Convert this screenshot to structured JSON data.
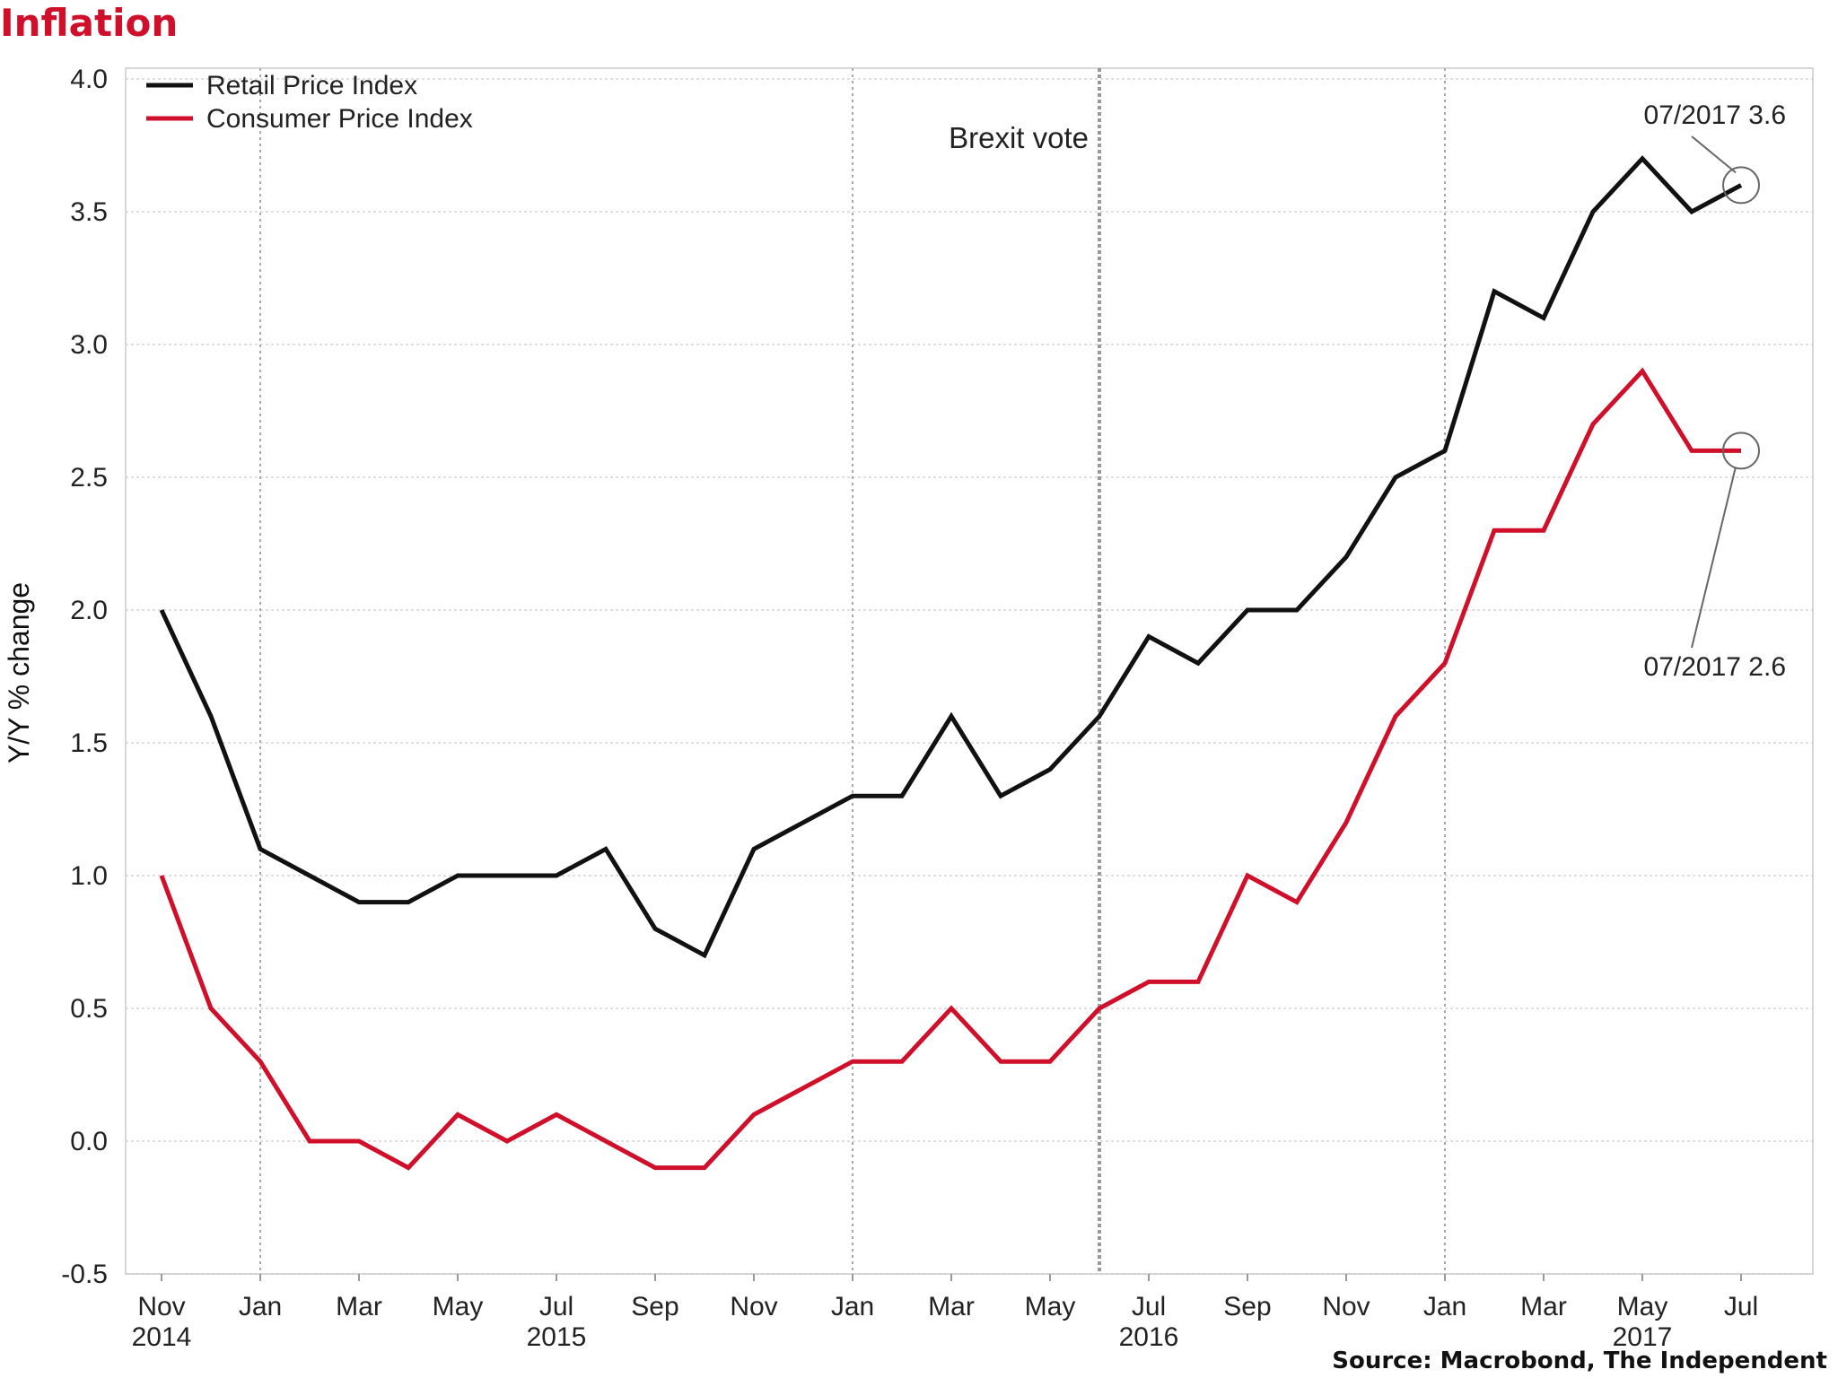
{
  "chart_data": {
    "type": "line",
    "title": "Inflation",
    "ylabel": "Y/Y % change",
    "ylim": [
      -0.5,
      4.0
    ],
    "yticks": [
      "4.0",
      "3.5",
      "3.0",
      "2.5",
      "2.0",
      "1.5",
      "1.0",
      "0.5",
      "0.0",
      "-0.5"
    ],
    "ytick_values": [
      4.0,
      3.5,
      3.0,
      2.5,
      2.0,
      1.5,
      1.0,
      0.5,
      0.0,
      -0.5
    ],
    "xticks": [
      "Nov",
      "Jan",
      "Mar",
      "May",
      "Jul",
      "Sep",
      "Nov",
      "Jan",
      "Mar",
      "May",
      "Jul",
      "Sep",
      "Nov",
      "Jan",
      "Mar",
      "May",
      "Jul"
    ],
    "xtick_months": [
      "2014-11",
      "2015-01",
      "2015-03",
      "2015-05",
      "2015-07",
      "2015-09",
      "2015-11",
      "2016-01",
      "2016-03",
      "2016-05",
      "2016-07",
      "2016-09",
      "2016-11",
      "2017-01",
      "2017-03",
      "2017-05",
      "2017-07"
    ],
    "year_labels": [
      {
        "label": "2014",
        "month": "2014-11"
      },
      {
        "label": "2015",
        "month": "2015-07"
      },
      {
        "label": "2016",
        "month": "2016-07"
      },
      {
        "label": "2017",
        "month": "2017-05"
      }
    ],
    "x": [
      "2014-11",
      "2014-12",
      "2015-01",
      "2015-02",
      "2015-03",
      "2015-04",
      "2015-05",
      "2015-06",
      "2015-07",
      "2015-08",
      "2015-09",
      "2015-10",
      "2015-11",
      "2015-12",
      "2016-01",
      "2016-02",
      "2016-03",
      "2016-04",
      "2016-05",
      "2016-06",
      "2016-07",
      "2016-08",
      "2016-09",
      "2016-10",
      "2016-11",
      "2016-12",
      "2017-01",
      "2017-02",
      "2017-03",
      "2017-04",
      "2017-05",
      "2017-06",
      "2017-07"
    ],
    "series": [
      {
        "name": "Retail Price Index",
        "color": "#111111",
        "values": [
          2.0,
          1.6,
          1.1,
          1.0,
          0.9,
          0.9,
          1.0,
          1.0,
          1.0,
          1.1,
          0.8,
          0.7,
          1.1,
          1.2,
          1.3,
          1.3,
          1.6,
          1.3,
          1.4,
          1.6,
          1.9,
          1.8,
          2.0,
          2.0,
          2.2,
          2.5,
          2.6,
          3.2,
          3.1,
          3.5,
          3.7,
          3.5,
          3.6
        ]
      },
      {
        "name": "Consumer Price Index",
        "color": "#d0102a",
        "values": [
          1.0,
          0.5,
          0.3,
          0.0,
          0.0,
          -0.1,
          0.1,
          0.0,
          0.1,
          0.0,
          -0.1,
          -0.1,
          0.1,
          0.2,
          0.3,
          0.3,
          0.5,
          0.3,
          0.3,
          0.5,
          0.6,
          0.6,
          1.0,
          0.9,
          1.2,
          1.6,
          1.8,
          2.3,
          2.3,
          2.7,
          2.9,
          2.6,
          2.6
        ]
      }
    ],
    "vlines": [
      {
        "month": "2015-01",
        "style": "dotted"
      },
      {
        "month": "2016-01",
        "style": "dotted"
      },
      {
        "month": "2016-06",
        "style": "dotted-bold",
        "label": "Brexit vote"
      },
      {
        "month": "2017-01",
        "style": "dotted"
      }
    ],
    "annotations": [
      {
        "text": "07/2017 3.6",
        "month": "2017-07",
        "value": 3.6
      },
      {
        "text": "07/2017 2.6",
        "month": "2017-07",
        "value": 2.6
      }
    ],
    "legend_position": "top-left",
    "grid": true,
    "source": "Source: Macrobond, The Independent"
  }
}
